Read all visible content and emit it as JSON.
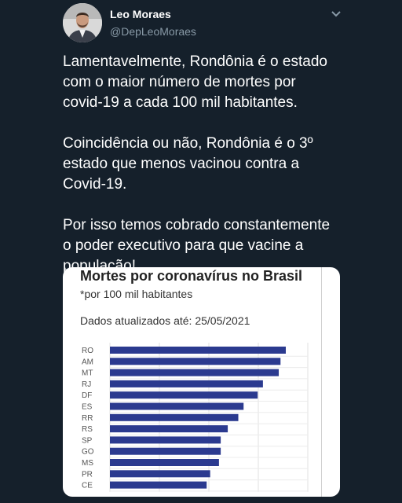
{
  "author": {
    "name": "Leo Moraes",
    "handle": "@DepLeoMoraes"
  },
  "tweet": {
    "paragraphs": [
      "Lamentavelmente, Rondônia é o estado\ncom o maior número de mortes por\ncovid-19 a cada 100 mil habitantes.",
      "Coincidência ou não, Rondônia é o 3º\nestado que menos vacinou contra a\nCovid-19.",
      "Por isso temos cobrado constantemente\no poder executivo para que vacine a\npopulação!"
    ]
  },
  "colors": {
    "background": "#15202b",
    "bar": "#2b3a8f",
    "secondary_text": "#8899a6"
  },
  "icons": {
    "more": "chevron-down-icon"
  },
  "chart_data": {
    "type": "bar",
    "orientation": "horizontal",
    "title": "Mortes por coronavírus no Brasil",
    "subtitle": "*por 100 mil habitantes",
    "note": "Dados atualizados até: 25/05/2021",
    "categories": [
      "RO",
      "AM",
      "MT",
      "RJ",
      "DF",
      "ES",
      "RR",
      "RS",
      "SP",
      "GO",
      "MS",
      "PR",
      "CE"
    ],
    "values": [
      100,
      97,
      96,
      87,
      84,
      76,
      73,
      67,
      63,
      63,
      62,
      57,
      55
    ],
    "grid": true
  }
}
